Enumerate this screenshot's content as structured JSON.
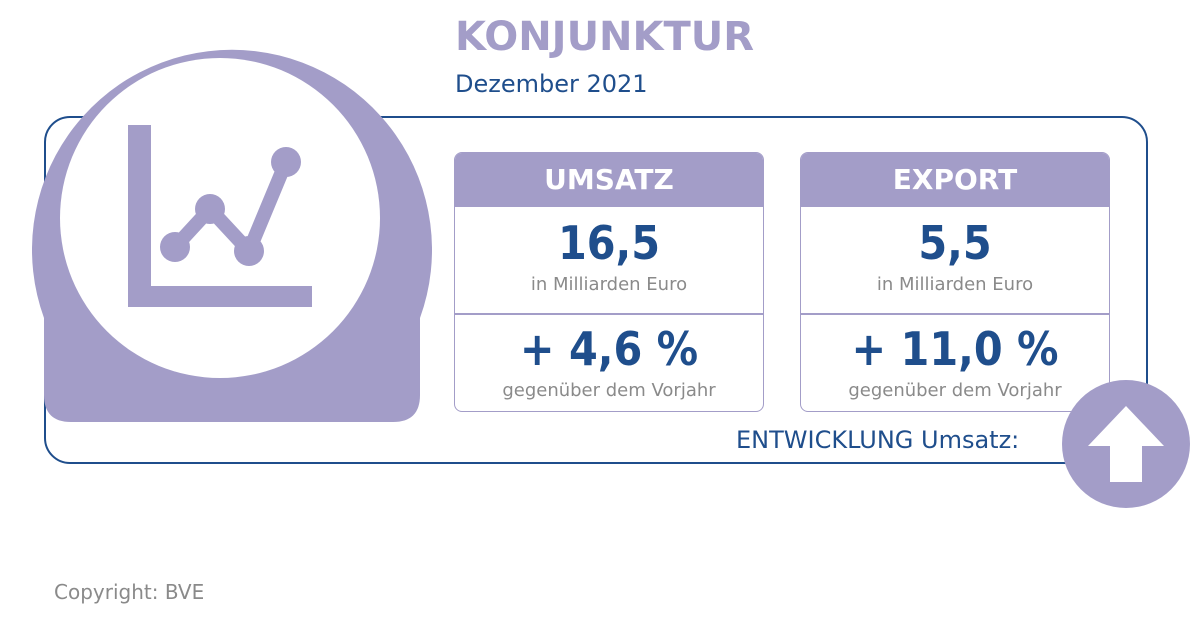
{
  "header": {
    "title": "KONJUNKTUR",
    "subtitle": "Dezember 2021"
  },
  "icons": {
    "badge": "line-chart-icon",
    "trend": "up-arrow-icon"
  },
  "colors": {
    "accent": "#a39dc8",
    "primary": "#1f4e8c",
    "muted": "#8a8a8a"
  },
  "cards": [
    {
      "label": "UMSATZ",
      "value": "16,5",
      "unit": "in Milliarden Euro",
      "change": "+ 4,6 %",
      "change_label": "gegenüber dem Vorjahr"
    },
    {
      "label": "EXPORT",
      "value": "5,5",
      "unit": "in Milliarden Euro",
      "change": "+ 11,0 %",
      "change_label": "gegenüber dem Vorjahr"
    }
  ],
  "trend_label": "ENTWICKLUNG Umsatz:",
  "copyright": "Copyright: BVE"
}
